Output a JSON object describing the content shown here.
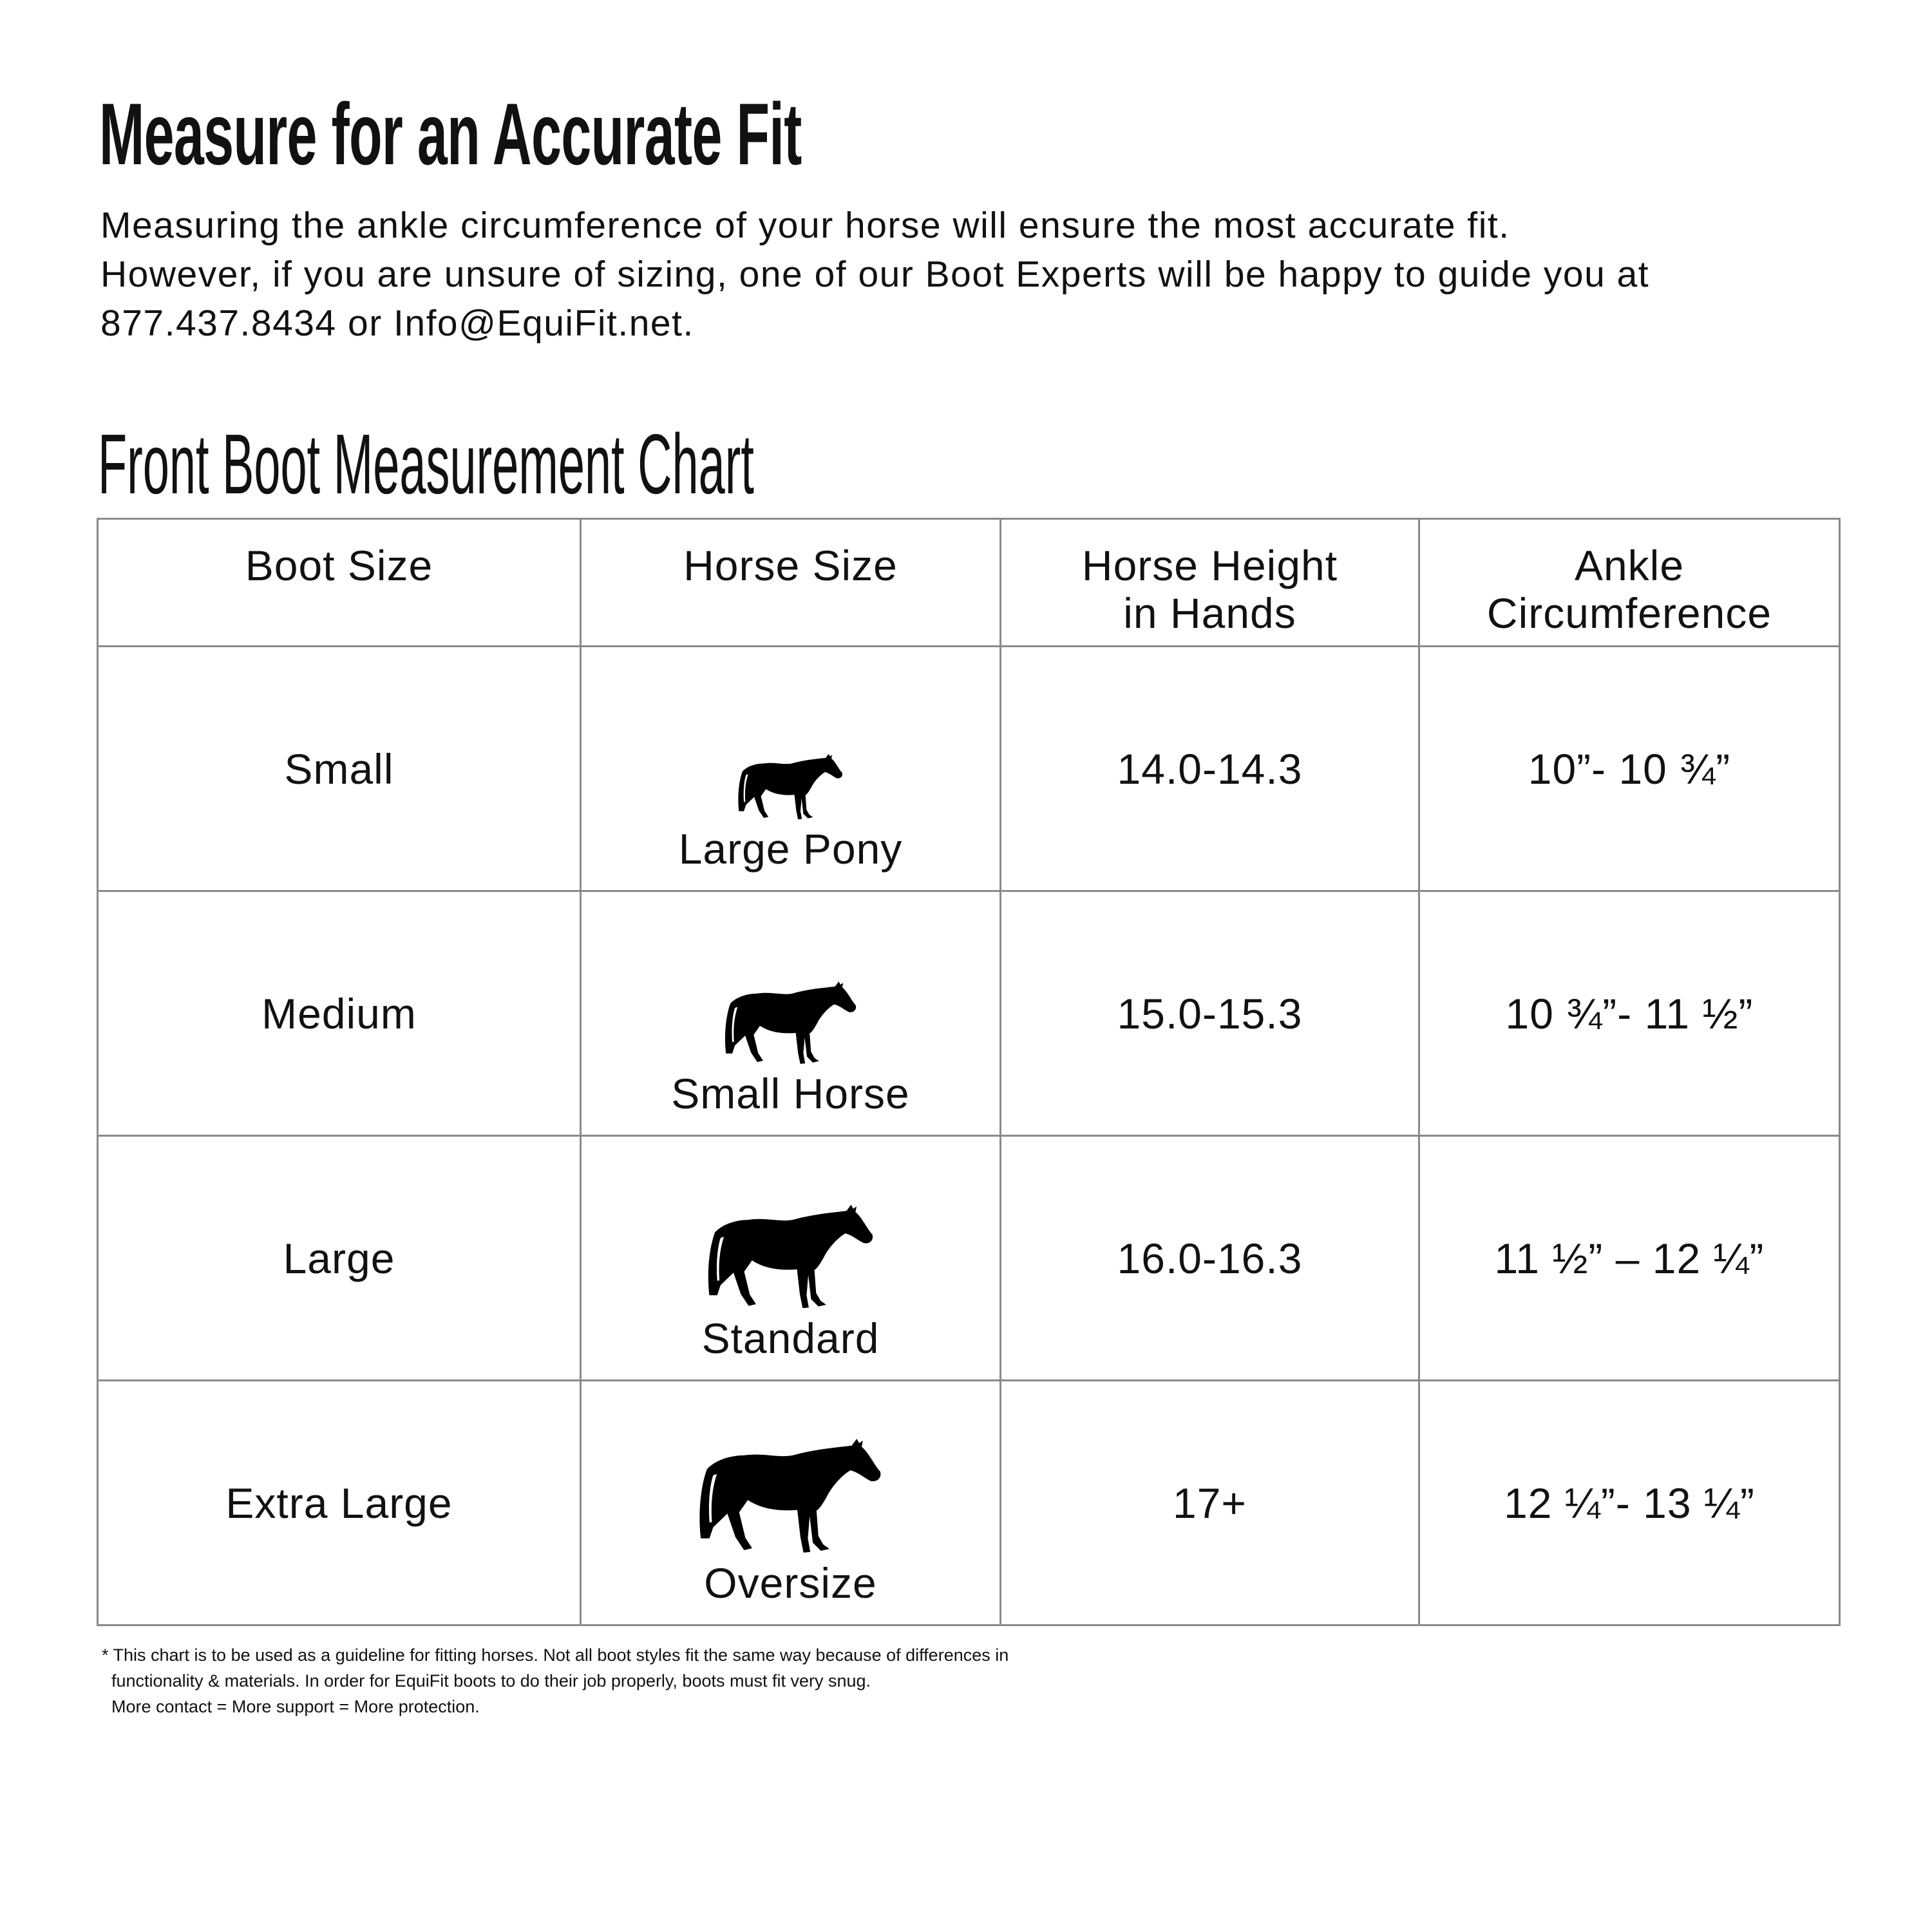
{
  "header": {
    "title": "Measure for an Accurate Fit",
    "intro_lines": [
      "Measuring the ankle circumference of your horse will ensure the most accurate fit.",
      "However, if you are unsure of sizing, one of our Boot Experts will be happy to guide you at",
      "877.437.8434 or Info@EquiFit.net."
    ]
  },
  "chart": {
    "title": "Front Boot Measurement Chart",
    "columns": [
      "Boot Size",
      "Horse Size",
      "Horse Height in Hands",
      "Ankle Circumference"
    ],
    "column_lines": [
      [
        "Boot Size"
      ],
      [
        "Horse Size"
      ],
      [
        "Horse Height",
        "in Hands"
      ],
      [
        "Ankle",
        "Circumference"
      ]
    ],
    "rows": [
      {
        "boot_size": "Small",
        "horse_size": "Large Pony",
        "height": "14.0-14.3",
        "ankle": "10”- 10 ¾”",
        "icon": "horse-silhouette-icon"
      },
      {
        "boot_size": "Medium",
        "horse_size": "Small Horse",
        "height": "15.0-15.3",
        "ankle": "10 ¾”- 11 ½”",
        "icon": "horse-silhouette-icon"
      },
      {
        "boot_size": "Large",
        "horse_size": "Standard",
        "height": "16.0-16.3",
        "ankle": "11 ½” – 12 ¼”",
        "icon": "horse-silhouette-icon"
      },
      {
        "boot_size": "Extra Large",
        "horse_size": "Oversize",
        "height": "17+",
        "ankle": "12 ¼”- 13 ¼”",
        "icon": "horse-silhouette-icon"
      }
    ]
  },
  "footnote": [
    "* This chart is to be used as a guideline for fitting horses. Not all boot styles fit the same way because of differences in",
    "  functionality & materials. In order for EquiFit boots to do their job properly, boots must fit very snug.",
    "  More contact = More support = More protection."
  ],
  "colors": {
    "text": "#111111",
    "grid": "#8a8a8a",
    "background": "#ffffff"
  }
}
